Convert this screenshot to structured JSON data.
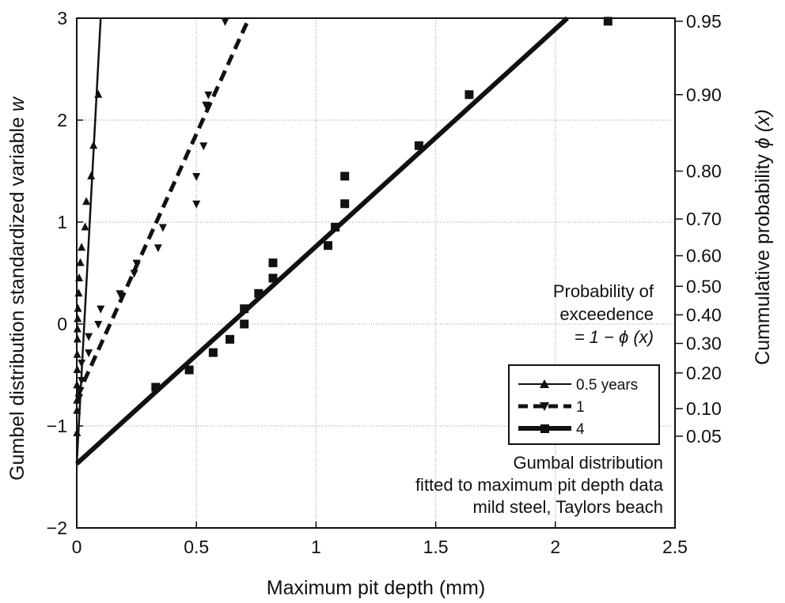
{
  "chart_data": {
    "type": "scatter",
    "title": "",
    "xlabel": "Maximum pit depth (mm)",
    "ylabel_prefix": "Gumbel distribution standardized variable ",
    "ylabel_var": "w",
    "y2label_prefix": "Cummulative probability ",
    "y2label_var": "ϕ (x)",
    "xlim": [
      0,
      2.5
    ],
    "ylim": [
      -2,
      3
    ],
    "x_ticks": [
      0,
      0.5,
      1,
      1.5,
      2,
      2.5
    ],
    "x_tick_labels": [
      "0",
      "0.5",
      "1",
      "1.5",
      "2",
      "2.5"
    ],
    "y_ticks": [
      -2,
      -1,
      0,
      1,
      2,
      3
    ],
    "y_tick_labels": [
      "−2",
      "−1",
      "0",
      "1",
      "2",
      "3"
    ],
    "y2_ticks": [
      {
        "label": "0.95",
        "w": 2.97
      },
      {
        "label": "0.90",
        "w": 2.25
      },
      {
        "label": "0.80",
        "w": 1.5
      },
      {
        "label": "0.70",
        "w": 1.03
      },
      {
        "label": "0.60",
        "w": 0.67
      },
      {
        "label": "0.50",
        "w": 0.37
      },
      {
        "label": "0.40",
        "w": 0.09
      },
      {
        "label": "0.30",
        "w": -0.19
      },
      {
        "label": "0.20",
        "w": -0.48
      },
      {
        "label": "0.10",
        "w": -0.83
      },
      {
        "label": "0.05",
        "w": -1.1
      }
    ],
    "grid": true,
    "series": [
      {
        "name": "0.5 years",
        "marker": "triangle-up",
        "line_style": "solid-thin",
        "fit_line": [
          [
            0,
            -1.37
          ],
          [
            0.1,
            3.0
          ]
        ],
        "points": [
          [
            0.09,
            2.25
          ],
          [
            0.07,
            1.75
          ],
          [
            0.06,
            1.45
          ],
          [
            0.04,
            1.2
          ],
          [
            0.035,
            0.95
          ],
          [
            0.02,
            0.75
          ],
          [
            0.015,
            0.6
          ],
          [
            0.01,
            0.45
          ],
          [
            0.008,
            0.3
          ],
          [
            0.005,
            0.15
          ],
          [
            0.004,
            0.05
          ],
          [
            0.003,
            -0.05
          ],
          [
            0.003,
            -0.15
          ],
          [
            0.002,
            -0.3
          ],
          [
            0.002,
            -0.45
          ],
          [
            0.001,
            -0.6
          ],
          [
            0.001,
            -0.75
          ],
          [
            0.001,
            -0.85
          ],
          [
            0.001,
            -1.07
          ]
        ]
      },
      {
        "name": "1",
        "marker": "triangle-down",
        "line_style": "dashed",
        "fit_line": [
          [
            0,
            -0.72
          ],
          [
            0.71,
            2.95
          ]
        ],
        "points": [
          [
            0.62,
            2.97
          ],
          [
            0.55,
            2.25
          ],
          [
            0.54,
            2.15
          ],
          [
            0.53,
            1.75
          ],
          [
            0.5,
            1.45
          ],
          [
            0.5,
            1.18
          ],
          [
            0.36,
            0.95
          ],
          [
            0.34,
            0.75
          ],
          [
            0.25,
            0.6
          ],
          [
            0.24,
            0.5
          ],
          [
            0.18,
            0.3
          ],
          [
            0.1,
            0.15
          ],
          [
            0.09,
            0.0
          ],
          [
            0.05,
            -0.12
          ],
          [
            0.05,
            -0.28
          ],
          [
            0.02,
            -0.38
          ],
          [
            0.02,
            -0.55
          ],
          [
            0.015,
            -0.65
          ],
          [
            0.01,
            -0.72
          ]
        ]
      },
      {
        "name": "4",
        "marker": "square",
        "line_style": "solid-thick",
        "fit_line": [
          [
            0,
            -1.37
          ],
          [
            2.05,
            3.0
          ]
        ],
        "points": [
          [
            2.22,
            2.97
          ],
          [
            1.64,
            2.25
          ],
          [
            1.43,
            1.75
          ],
          [
            1.12,
            1.45
          ],
          [
            1.12,
            1.18
          ],
          [
            1.08,
            0.95
          ],
          [
            1.05,
            0.77
          ],
          [
            0.82,
            0.6
          ],
          [
            0.82,
            0.45
          ],
          [
            0.76,
            0.3
          ],
          [
            0.7,
            0.15
          ],
          [
            0.7,
            0.0
          ],
          [
            0.64,
            -0.15
          ],
          [
            0.57,
            -0.28
          ],
          [
            0.47,
            -0.45
          ],
          [
            0.33,
            -0.62
          ]
        ]
      }
    ],
    "legend": {
      "position": "right",
      "entries": [
        "0.5 years",
        "1",
        "4"
      ]
    },
    "annotations": {
      "exceedence": [
        "Probability of",
        "exceedence",
        "= 1 − ϕ (x)"
      ],
      "caption": [
        "Gumbal distribution",
        "fitted to maximum pit depth data",
        "mild steel, Taylors beach"
      ]
    }
  },
  "colors": {
    "ink": "#111111",
    "grid": "#9a9a9a",
    "background": "#ffffff"
  }
}
